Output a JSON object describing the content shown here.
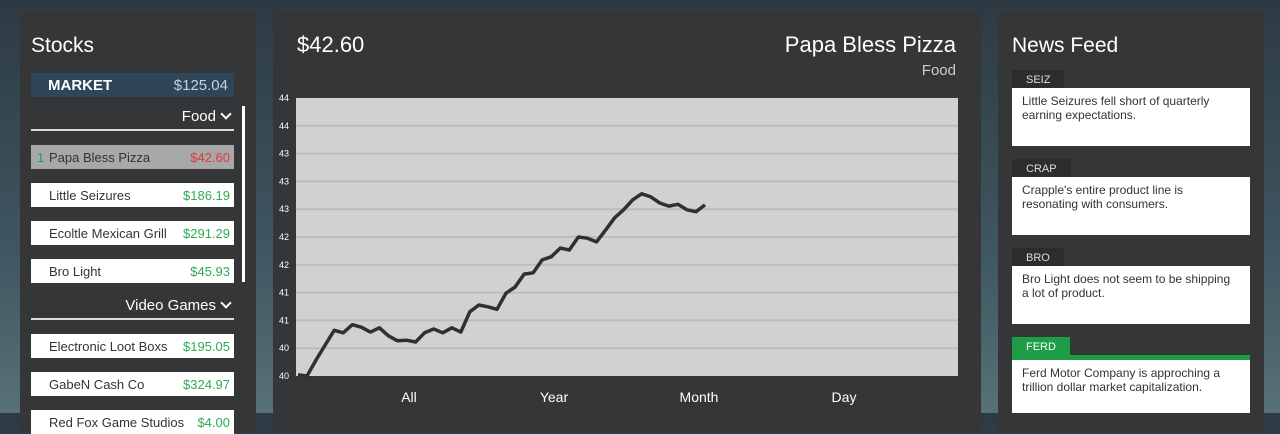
{
  "stocks": {
    "title": "Stocks",
    "market": {
      "label": "MARKET",
      "value": "$125.04"
    },
    "categories": [
      {
        "name": "Food",
        "items": [
          {
            "rank": "1",
            "name": "Papa Bless Pizza",
            "price": "$42.60",
            "selected": true
          },
          {
            "rank": "",
            "name": "Little Seizures",
            "price": "$186.19"
          },
          {
            "rank": "",
            "name": "Ecoltle Mexican Grill",
            "price": "$291.29"
          },
          {
            "rank": "",
            "name": "Bro Light",
            "price": "$45.93"
          }
        ]
      },
      {
        "name": "Video Games",
        "items": [
          {
            "rank": "",
            "name": "Electronic Loot Boxs",
            "price": "$195.05"
          },
          {
            "rank": "",
            "name": "GabeN Cash Co",
            "price": "$324.97"
          },
          {
            "rank": "",
            "name": "Red Fox Game Studios",
            "price": "$4.00"
          }
        ]
      }
    ]
  },
  "detail": {
    "price": "$42.60",
    "company": "Papa Bless Pizza",
    "sector": "Food"
  },
  "chart_data": {
    "type": "line",
    "ylim": [
      39.8,
      44.3
    ],
    "ytick_labels": [
      "40",
      "40",
      "41",
      "41",
      "42",
      "42",
      "43",
      "43",
      "43",
      "44",
      "44"
    ],
    "xtick_labels": [
      "All",
      "Year",
      "Month",
      "Day"
    ],
    "grid": true,
    "line_color": "#2e3033",
    "background": "#d1d1d1",
    "values": [
      39.82,
      39.8,
      40.06,
      40.3,
      40.54,
      40.5,
      40.63,
      40.59,
      40.51,
      40.58,
      40.45,
      40.37,
      40.38,
      40.35,
      40.5,
      40.56,
      40.5,
      40.58,
      40.51,
      40.84,
      40.95,
      40.92,
      40.88,
      41.14,
      41.24,
      41.45,
      41.47,
      41.68,
      41.73,
      41.87,
      41.84,
      42.05,
      42.03,
      41.97,
      42.16,
      42.36,
      42.49,
      42.65,
      42.75,
      42.7,
      42.6,
      42.55,
      42.58,
      42.49,
      42.46,
      42.57
    ]
  },
  "news": {
    "title": "News Feed",
    "items": [
      {
        "tag": "SEIZ",
        "text": "Little Seizures fell short of quarterly earning expectations.",
        "highlight": false
      },
      {
        "tag": "CRAP",
        "text": "Crapple's entire product line is resonating with consumers.",
        "highlight": false
      },
      {
        "tag": "BRO",
        "text": "Bro Light does not seem to be shipping a lot of product.",
        "highlight": false
      },
      {
        "tag": "FERD",
        "text": "Ferd Motor Company is approching a trillion dollar market capitalization.",
        "highlight": true
      }
    ]
  },
  "colors": {
    "up": "#2faa55",
    "down": "#e03a3a",
    "accent": "#1e9d47"
  }
}
